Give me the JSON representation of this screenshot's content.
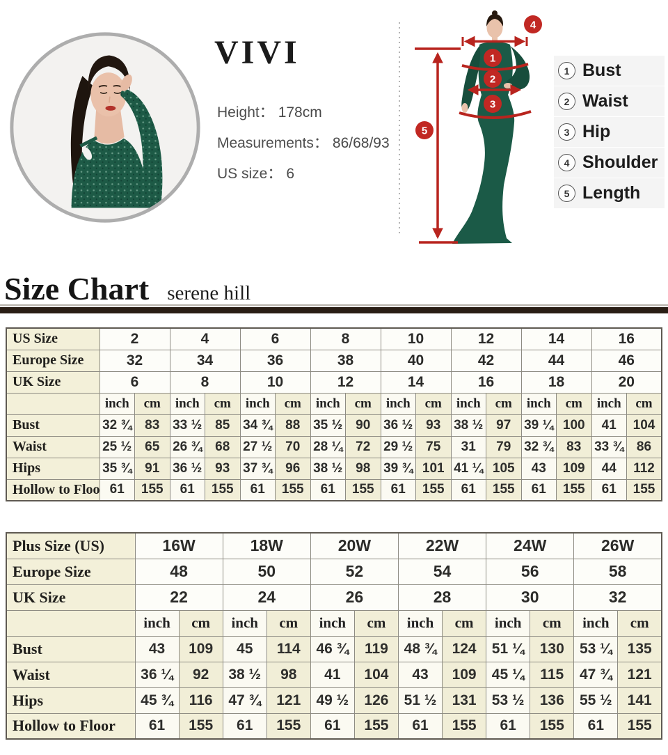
{
  "brand_card": {
    "brand": "VIVI",
    "specs": [
      {
        "label": "Height",
        "colon": "：",
        "value": "178cm"
      },
      {
        "label": "Measurements",
        "colon": "：",
        "value": "86/68/93"
      },
      {
        "label": "US size",
        "colon": "：",
        "value": "6"
      }
    ]
  },
  "measure_guide": {
    "badges": {
      "bust": "1",
      "waist": "2",
      "hip": "3",
      "shoulder": "4",
      "length": "5"
    },
    "legend": [
      {
        "num": "1",
        "label": "Bust"
      },
      {
        "num": "2",
        "label": "Waist"
      },
      {
        "num": "3",
        "label": "Hip"
      },
      {
        "num": "4",
        "label": "Shoulder"
      },
      {
        "num": "5",
        "label": "Length"
      }
    ]
  },
  "heading": {
    "title": "Size Chart",
    "subtitle": "serene hill"
  },
  "colors": {
    "marker_red": "#c12823",
    "dress_green": "#1d5a46",
    "table_cream": "#f3f0d9",
    "rule_dark": "#2a1e15"
  },
  "standard_table": {
    "name": "standard-size-table",
    "label_col_width": 134,
    "unit_headers": [
      "inch",
      "cm"
    ],
    "size_rows": [
      {
        "label": "US Size",
        "values": [
          "2",
          "4",
          "6",
          "8",
          "10",
          "12",
          "14",
          "16"
        ]
      },
      {
        "label": "Europe Size",
        "values": [
          "32",
          "34",
          "36",
          "38",
          "40",
          "42",
          "44",
          "46"
        ]
      },
      {
        "label": "UK Size",
        "values": [
          "6",
          "8",
          "10",
          "12",
          "14",
          "16",
          "18",
          "20"
        ]
      }
    ],
    "measure_rows": [
      {
        "label": "Bust",
        "inch": [
          "32 ¾",
          "33 ½",
          "34 ¾",
          "35 ½",
          "36 ½",
          "38 ½",
          "39 ¼",
          "41"
        ],
        "cm": [
          "83",
          "85",
          "88",
          "90",
          "93",
          "97",
          "100",
          "104"
        ]
      },
      {
        "label": "Waist",
        "inch": [
          "25 ½",
          "26 ¾",
          "27 ½",
          "28 ¼",
          "29 ½",
          "31",
          "32 ¾",
          "33 ¾"
        ],
        "cm": [
          "65",
          "68",
          "70",
          "72",
          "75",
          "79",
          "83",
          "86"
        ]
      },
      {
        "label": "Hips",
        "inch": [
          "35 ¾",
          "36 ½",
          "37 ¾",
          "38 ½",
          "39 ¾",
          "41 ¼",
          "43",
          "44"
        ],
        "cm": [
          "91",
          "93",
          "96",
          "98",
          "101",
          "105",
          "109",
          "112"
        ]
      },
      {
        "label": "Hollow to Floor",
        "inch": [
          "61",
          "61",
          "61",
          "61",
          "61",
          "61",
          "61",
          "61"
        ],
        "cm": [
          "155",
          "155",
          "155",
          "155",
          "155",
          "155",
          "155",
          "155"
        ]
      }
    ]
  },
  "plus_table": {
    "name": "plus-size-table",
    "label_col_width": 185,
    "unit_headers": [
      "inch",
      "cm"
    ],
    "size_rows": [
      {
        "label": "Plus Size (US)",
        "values": [
          "16W",
          "18W",
          "20W",
          "22W",
          "24W",
          "26W"
        ]
      },
      {
        "label": "Europe Size",
        "values": [
          "48",
          "50",
          "52",
          "54",
          "56",
          "58"
        ]
      },
      {
        "label": "UK Size",
        "values": [
          "22",
          "24",
          "26",
          "28",
          "30",
          "32"
        ]
      }
    ],
    "measure_rows": [
      {
        "label": "Bust",
        "inch": [
          "43",
          "45",
          "46 ¾",
          "48 ¾",
          "51 ¼",
          "53 ¼"
        ],
        "cm": [
          "109",
          "114",
          "119",
          "124",
          "130",
          "135"
        ]
      },
      {
        "label": "Waist",
        "inch": [
          "36 ¼",
          "38 ½",
          "41",
          "43",
          "45 ¼",
          "47 ¾"
        ],
        "cm": [
          "92",
          "98",
          "104",
          "109",
          "115",
          "121"
        ]
      },
      {
        "label": "Hips",
        "inch": [
          "45 ¾",
          "47 ¾",
          "49 ½",
          "51 ½",
          "53 ½",
          "55 ½"
        ],
        "cm": [
          "116",
          "121",
          "126",
          "131",
          "136",
          "141"
        ]
      },
      {
        "label": "Hollow to Floor",
        "inch": [
          "61",
          "61",
          "61",
          "61",
          "61",
          "61"
        ],
        "cm": [
          "155",
          "155",
          "155",
          "155",
          "155",
          "155"
        ]
      }
    ]
  }
}
